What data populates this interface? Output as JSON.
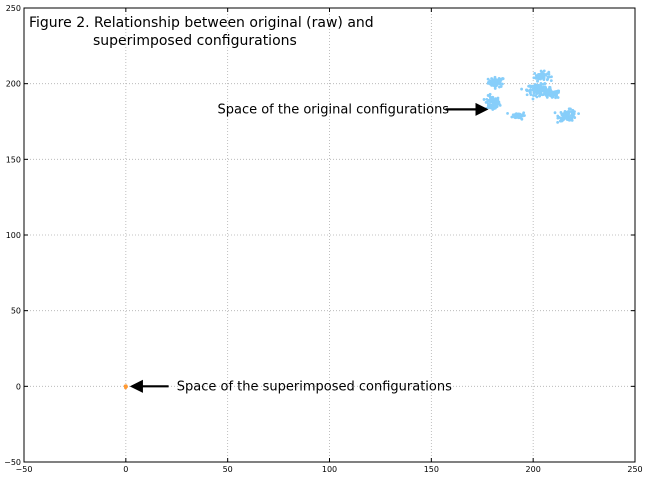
{
  "chart_data": {
    "type": "scatter",
    "title_lines": [
      "Figure 2. Relationship between original (raw) and",
      "superimposed configurations"
    ],
    "xlabel": "",
    "ylabel": "",
    "xlim": [
      -50,
      250
    ],
    "ylim": [
      -50,
      250
    ],
    "xticks": [
      -50,
      0,
      50,
      100,
      150,
      200,
      250
    ],
    "yticks": [
      -50,
      0,
      50,
      100,
      150,
      200,
      250
    ],
    "xtick_labels": [
      "−50",
      "0",
      "50",
      "100",
      "150",
      "200",
      "250"
    ],
    "ytick_labels": [
      "−50",
      "0",
      "50",
      "100",
      "150",
      "200",
      "250"
    ],
    "grid": true,
    "series": [
      {
        "color": "#87cefa",
        "clusters": [
          {
            "x": 182,
            "y": 201,
            "sx": 2.0,
            "sy": 1.6,
            "n": 60
          },
          {
            "x": 180,
            "y": 187,
            "sx": 1.8,
            "sy": 2.4,
            "n": 80
          },
          {
            "x": 193,
            "y": 179,
            "sx": 1.6,
            "sy": 1.2,
            "n": 40
          },
          {
            "x": 204,
            "y": 205,
            "sx": 1.8,
            "sy": 1.5,
            "n": 60
          },
          {
            "x": 203,
            "y": 196,
            "sx": 3.0,
            "sy": 1.8,
            "n": 120
          },
          {
            "x": 209,
            "y": 193,
            "sx": 2.2,
            "sy": 1.4,
            "n": 60
          },
          {
            "x": 217,
            "y": 179,
            "sx": 2.2,
            "sy": 1.8,
            "n": 90
          }
        ]
      },
      {
        "color": "#ff9933",
        "clusters": [
          {
            "x": 0,
            "y": 0,
            "sx": 0.25,
            "sy": 0.25,
            "n": 15
          }
        ]
      }
    ],
    "annotations": [
      {
        "text": "Space of the original configurations",
        "text_x": 45,
        "text_y": 183,
        "arrow_from": [
          157,
          183
        ],
        "arrow_to": [
          177,
          183
        ],
        "anchor": "start"
      },
      {
        "text": "Space of the superimposed configurations",
        "text_x": 25,
        "text_y": 0,
        "arrow_from": [
          21,
          0
        ],
        "arrow_to": [
          3,
          0
        ],
        "anchor": "start"
      }
    ]
  }
}
